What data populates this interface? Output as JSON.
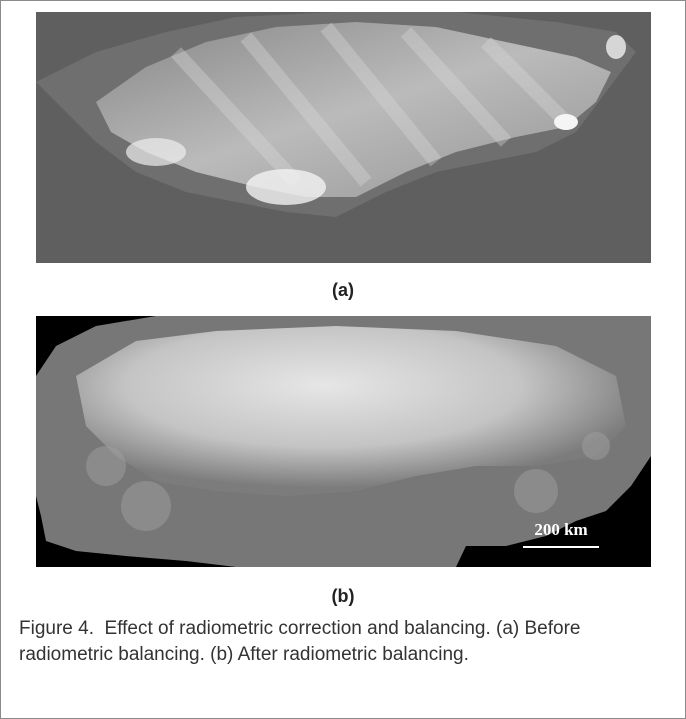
{
  "panels": [
    {
      "label": "(a)"
    },
    {
      "label": "(b)",
      "scale_bar": "200 km"
    }
  ],
  "caption": "Figure 4.  Effect of radiometric correction and balancing. (a) Before radiometric balancing. (b) After radiometric balancing."
}
